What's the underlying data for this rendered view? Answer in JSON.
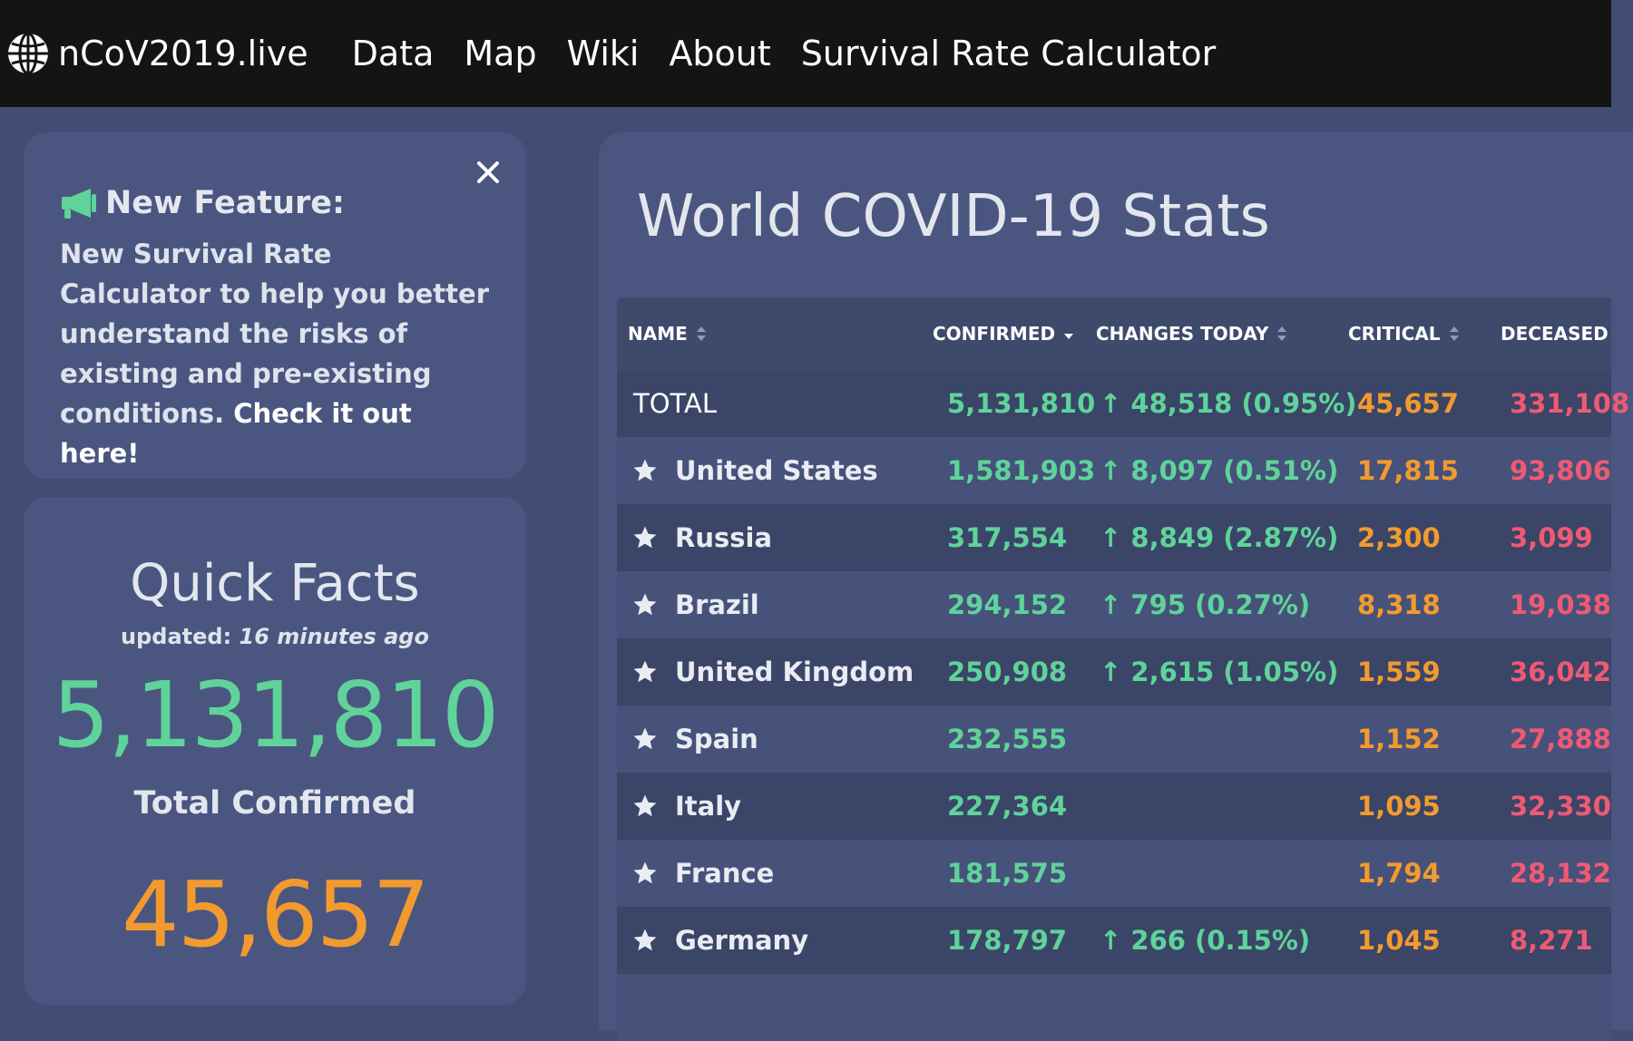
{
  "nav": {
    "brand": "nCoV2019.live",
    "links": [
      "Data",
      "Map",
      "Wiki",
      "About",
      "Survival Rate Calculator"
    ]
  },
  "feature": {
    "title": "New Feature:",
    "body": "New Survival Rate Calculator to help you better understand the risks of existing and pre-existing conditions.",
    "cta": "Check it out here!"
  },
  "quick_facts": {
    "title": "Quick Facts",
    "updated_label": "updated:",
    "updated_value": "16 minutes ago",
    "total_confirmed": "5,131,810",
    "total_confirmed_label": "Total Confirmed",
    "critical": "45,657"
  },
  "stats": {
    "title": "World COVID-19 Stats",
    "headers": {
      "name": "NAME",
      "confirmed": "CONFIRMED",
      "changes_today": "CHANGES TODAY",
      "critical": "CRITICAL",
      "deceased": "DECEASED"
    },
    "total": {
      "name": "TOTAL",
      "confirmed": "5,131,810",
      "changes": "↑ 48,518 (0.95%)",
      "critical": "45,657",
      "deceased": "331,108"
    },
    "rows": [
      {
        "name": "United States",
        "confirmed": "1,581,903",
        "changes": "↑ 8,097 (0.51%)",
        "critical": "17,815",
        "deceased": "93,806"
      },
      {
        "name": "Russia",
        "confirmed": "317,554",
        "changes": "↑ 8,849 (2.87%)",
        "critical": "2,300",
        "deceased": "3,099"
      },
      {
        "name": "Brazil",
        "confirmed": "294,152",
        "changes": "↑ 795 (0.27%)",
        "critical": "8,318",
        "deceased": "19,038"
      },
      {
        "name": "United Kingdom",
        "confirmed": "250,908",
        "changes": "↑ 2,615 (1.05%)",
        "critical": "1,559",
        "deceased": "36,042"
      },
      {
        "name": "Spain",
        "confirmed": "232,555",
        "changes": "",
        "critical": "1,152",
        "deceased": "27,888"
      },
      {
        "name": "Italy",
        "confirmed": "227,364",
        "changes": "",
        "critical": "1,095",
        "deceased": "32,330"
      },
      {
        "name": "France",
        "confirmed": "181,575",
        "changes": "",
        "critical": "1,794",
        "deceased": "28,132"
      },
      {
        "name": "Germany",
        "confirmed": "178,797",
        "changes": "↑ 266 (0.15%)",
        "critical": "1,045",
        "deceased": "8,271"
      }
    ]
  },
  "colors": {
    "navbar": "#141414",
    "page_bg": "#414d72",
    "card_bg": "#4a5680",
    "confirmed": "#5fd39a",
    "critical": "#f39a2f",
    "deceased": "#ef5a73"
  }
}
